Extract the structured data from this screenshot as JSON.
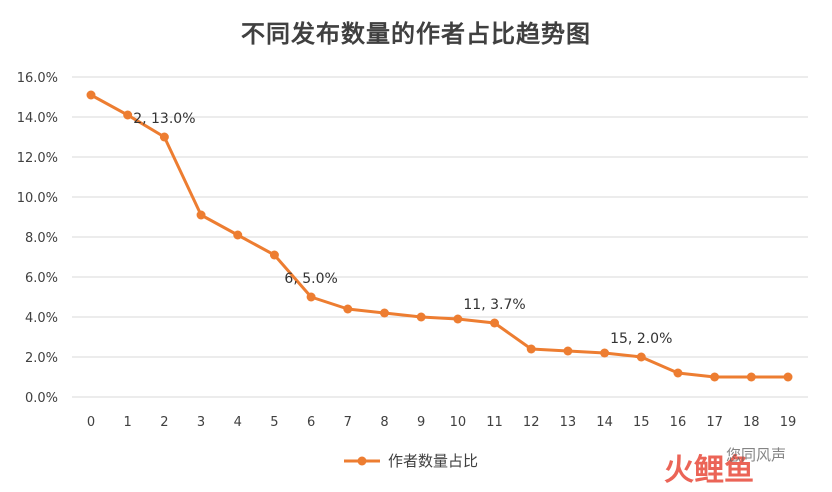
{
  "chart_data": {
    "type": "line",
    "title": "不同发布数量的作者占比趋势图",
    "xlabel": "",
    "ylabel": "",
    "categories": [
      "0",
      "1",
      "2",
      "3",
      "4",
      "5",
      "6",
      "7",
      "8",
      "9",
      "10",
      "11",
      "12",
      "13",
      "14",
      "15",
      "16",
      "17",
      "18",
      "19"
    ],
    "series": [
      {
        "name": "作者数量占比",
        "color": "#ED7D31",
        "values": [
          15.1,
          14.1,
          13.0,
          9.1,
          8.1,
          7.1,
          5.0,
          4.4,
          4.2,
          4.0,
          3.9,
          3.7,
          2.4,
          2.3,
          2.2,
          2.0,
          1.2,
          1.0,
          1.0,
          1.0
        ]
      }
    ],
    "ylim": [
      0,
      16
    ],
    "yticks": [
      "0.0%",
      "2.0%",
      "4.0%",
      "6.0%",
      "8.0%",
      "10.0%",
      "12.0%",
      "14.0%",
      "16.0%"
    ],
    "grid": true,
    "legend": "bottom",
    "annotations": [
      {
        "index": 2,
        "text": "2, 13.0%"
      },
      {
        "index": 6,
        "text": "6, 5.0%"
      },
      {
        "index": 11,
        "text": "11, 3.7%"
      },
      {
        "index": 15,
        "text": "15, 2.0%"
      }
    ]
  },
  "watermark": {
    "logo_text": "火鲤鱼",
    "caption": "您同风声"
  }
}
